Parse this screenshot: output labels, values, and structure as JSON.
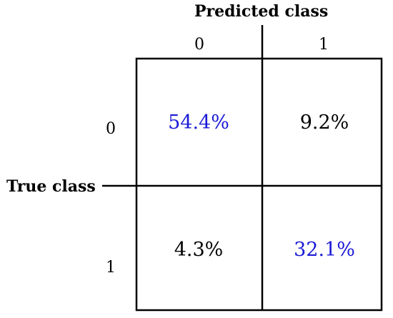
{
  "axes": {
    "predicted_title": "Predicted class",
    "true_title": "True class"
  },
  "predicted_ticks": [
    "0",
    "1"
  ],
  "true_ticks": [
    "0",
    "1"
  ],
  "cells": [
    [
      "54.4%",
      "9.2%"
    ],
    [
      "4.3%",
      "32.1%"
    ]
  ],
  "colors": {
    "diagonal": "#1a1ad6",
    "off_diagonal": "#000000",
    "lines": "#000000"
  }
}
